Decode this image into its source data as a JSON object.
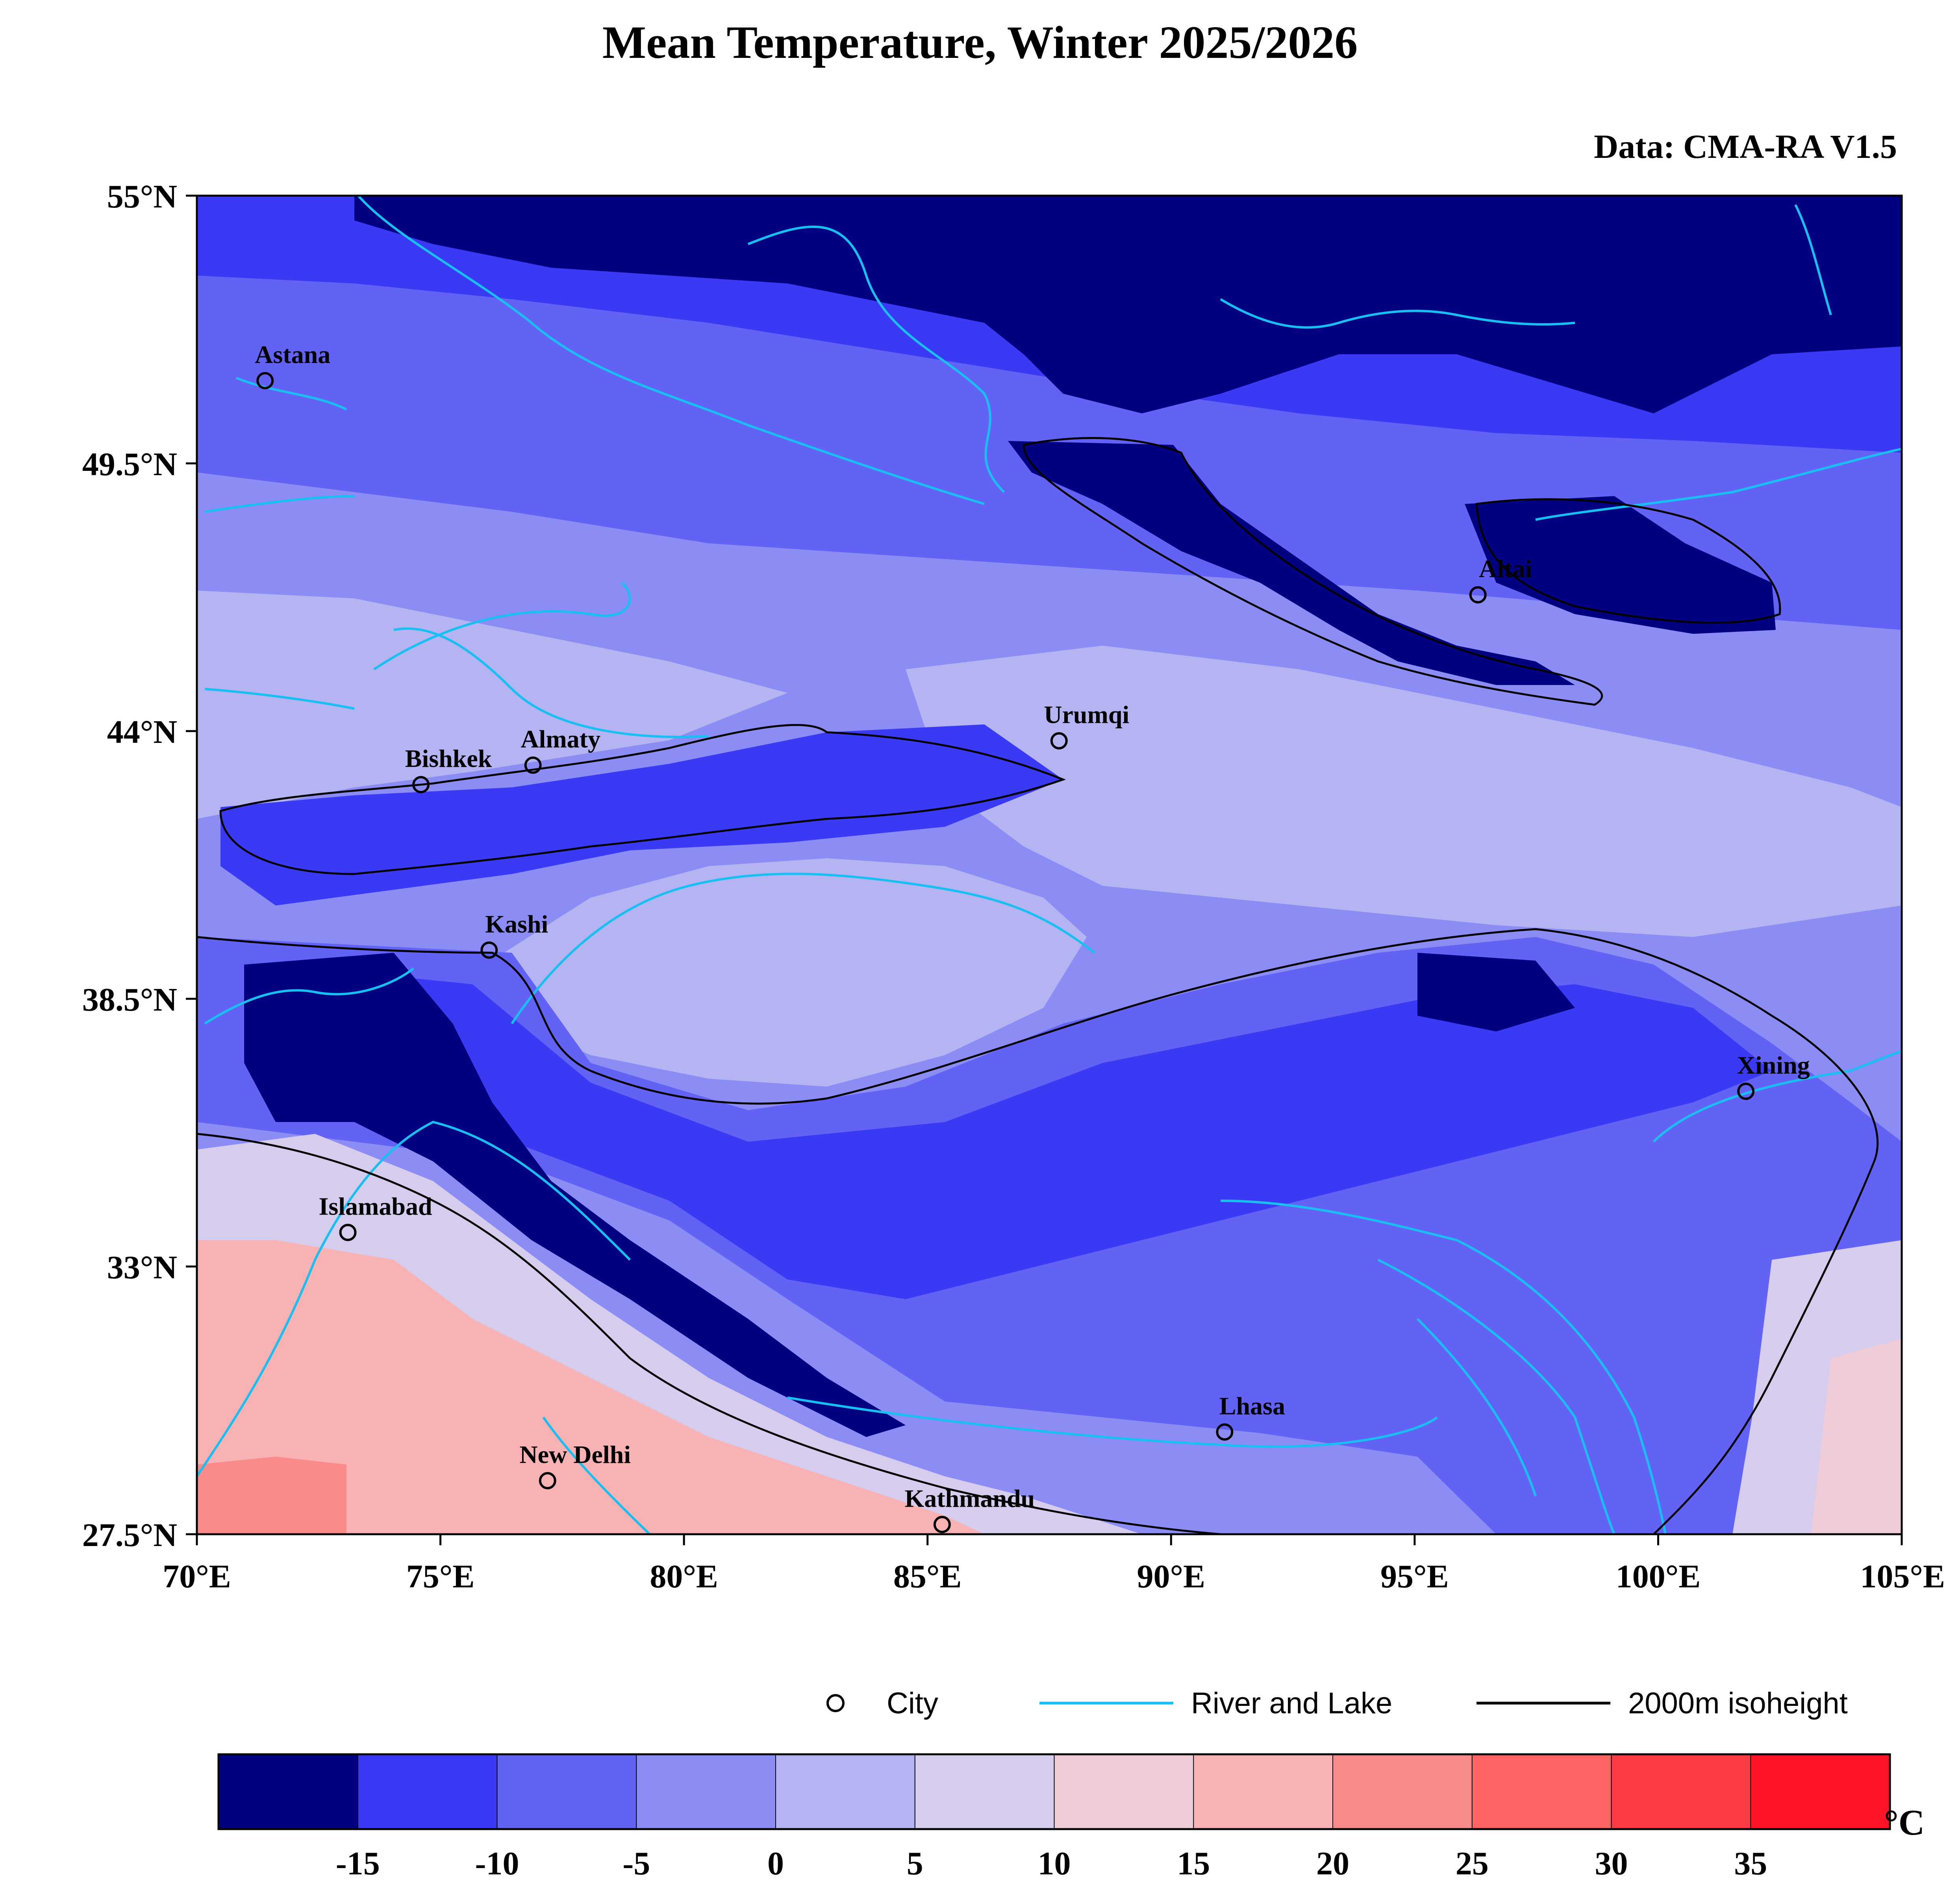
{
  "title": "Mean Temperature, Winter 2025/2026",
  "source": "Data: CMA-RA V1.5",
  "map": {
    "lon_range": [
      70,
      105
    ],
    "lat_range": [
      27.5,
      55
    ],
    "x_ticks": [
      "70°E",
      "75°E",
      "80°E",
      "85°E",
      "90°E",
      "95°E",
      "100°E",
      "105°E"
    ],
    "y_ticks": [
      "55°N",
      "49.5°N",
      "44°N",
      "38.5°N",
      "33°N",
      "27.5°N"
    ],
    "cities": [
      {
        "name": "Astana",
        "lon": 71.4,
        "lat": 51.2
      },
      {
        "name": "Bishkek",
        "lon": 74.6,
        "lat": 42.9
      },
      {
        "name": "Almaty",
        "lon": 76.9,
        "lat": 43.3
      },
      {
        "name": "Urumqi",
        "lon": 87.7,
        "lat": 43.8
      },
      {
        "name": "Altai",
        "lon": 96.3,
        "lat": 46.8
      },
      {
        "name": "Kashi",
        "lon": 76.0,
        "lat": 39.5
      },
      {
        "name": "Xining",
        "lon": 101.8,
        "lat": 36.6
      },
      {
        "name": "Islamabad",
        "lon": 73.1,
        "lat": 33.7
      },
      {
        "name": "Lhasa",
        "lon": 91.1,
        "lat": 29.6
      },
      {
        "name": "New Delhi",
        "lon": 77.2,
        "lat": 28.6
      },
      {
        "name": "Kathmandu",
        "lon": 85.3,
        "lat": 27.7
      }
    ]
  },
  "legend": {
    "city": "City",
    "river": "River and Lake",
    "isoheight": "2000m isoheight"
  },
  "colorbar": {
    "unit": "°C",
    "tick_labels": [
      "-15",
      "-10",
      "-5",
      "0",
      "5",
      "10",
      "15",
      "20",
      "25",
      "30",
      "35"
    ],
    "colors": [
      "#000080",
      "#3a3af5",
      "#6262f5",
      "#8c8cf5",
      "#b4b4f3",
      "#d6cdee",
      "#eeccd8",
      "#f8b2b4",
      "#fb8a8a",
      "#fc6464",
      "#fd3c48",
      "#ff1428"
    ]
  },
  "styles": {
    "river_color": "#19bff0",
    "isoheight_color": "#000000"
  }
}
